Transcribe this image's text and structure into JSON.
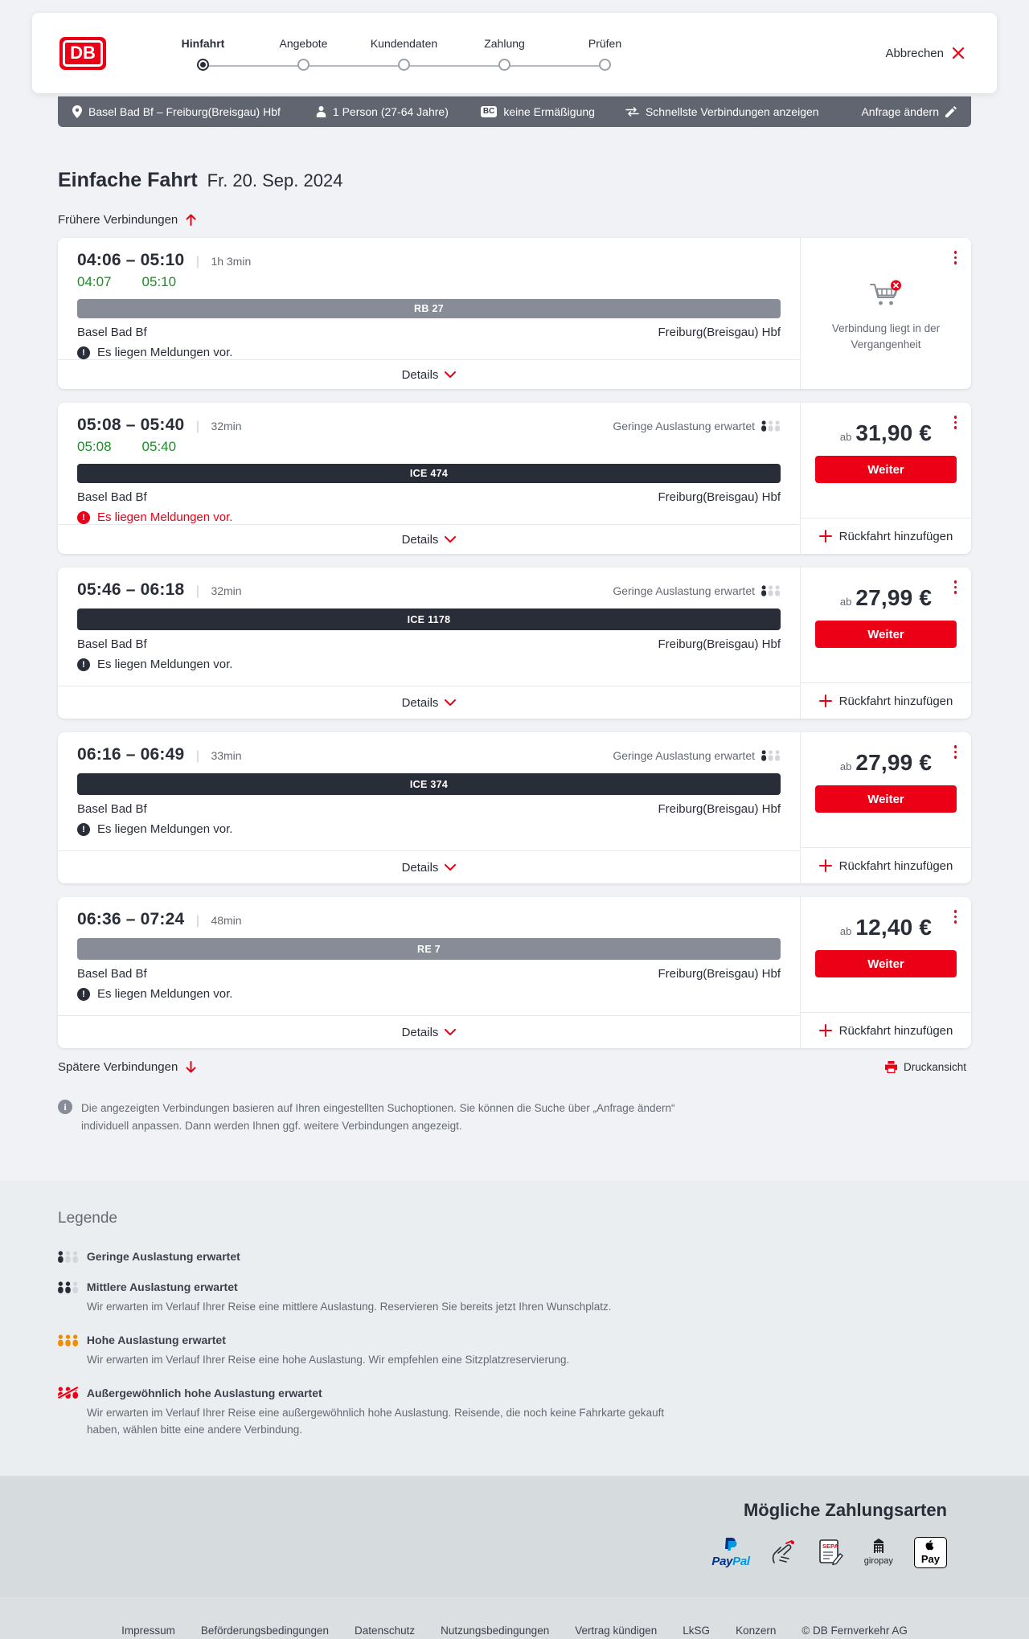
{
  "header": {
    "logo": "DB",
    "steps": [
      {
        "label": "Hinfahrt",
        "active": true
      },
      {
        "label": "Angebote",
        "active": false
      },
      {
        "label": "Kundendaten",
        "active": false
      },
      {
        "label": "Zahlung",
        "active": false
      },
      {
        "label": "Prüfen",
        "active": false
      }
    ],
    "cancel_label": "Abbrechen"
  },
  "tripbar": {
    "route": "Basel Bad Bf – Freiburg(Breisgau) Hbf",
    "passengers": "1 Person (27-64 Jahre)",
    "bahncard_badge": "BC",
    "discount": "keine Ermäßigung",
    "fastest_label": "Schnellste Verbindungen anzeigen",
    "change_label": "Anfrage ändern"
  },
  "page": {
    "title": "Einfache Fahrt",
    "date": "Fr. 20. Sep. 2024",
    "earlier_label": "Frühere Verbindungen",
    "later_label": "Spätere Verbindungen",
    "print_label": "Druckansicht",
    "info_text": "Die angezeigten Verbindungen basieren auf Ihren eingestellten Suchoptionen. Sie können die Suche über „Anfrage ändern“ individuell anpassen. Dann werden Ihnen ggf. weitere Verbindungen angezeigt."
  },
  "actions": {
    "price_prefix": "ab",
    "continue_label": "Weiter",
    "add_return_label": "Rückfahrt hinzufügen",
    "details_label": "Details"
  },
  "connections": [
    {
      "time_range": "04:06 – 05:10",
      "duration": "1h 3min",
      "rt_dep": "04:07",
      "rt_arr": "05:10",
      "train": "RB 27",
      "train_type": "regional",
      "from": "Basel Bad Bf",
      "to": "Freiburg(Breisgau) Hbf",
      "message": "Es liegen Meldungen vor.",
      "message_severity": "info",
      "occupancy": "",
      "side": {
        "type": "past",
        "note": "Verbindung liegt in der Vergangenheit"
      }
    },
    {
      "time_range": "05:08 – 05:40",
      "duration": "32min",
      "rt_dep": "05:08",
      "rt_arr": "05:40",
      "train": "ICE 474",
      "train_type": "ice",
      "from": "Basel Bad Bf",
      "to": "Freiburg(Breisgau) Hbf",
      "message": "Es liegen Meldungen vor.",
      "message_severity": "alert",
      "occupancy": "Geringe Auslastung erwartet",
      "side": {
        "type": "price",
        "price": "31,90 €"
      }
    },
    {
      "time_range": "05:46 – 06:18",
      "duration": "32min",
      "rt_dep": "",
      "rt_arr": "",
      "train": "ICE 1178",
      "train_type": "ice",
      "from": "Basel Bad Bf",
      "to": "Freiburg(Breisgau) Hbf",
      "message": "Es liegen Meldungen vor.",
      "message_severity": "info",
      "occupancy": "Geringe Auslastung erwartet",
      "side": {
        "type": "price",
        "price": "27,99 €"
      }
    },
    {
      "time_range": "06:16 – 06:49",
      "duration": "33min",
      "rt_dep": "",
      "rt_arr": "",
      "train": "ICE 374",
      "train_type": "ice",
      "from": "Basel Bad Bf",
      "to": "Freiburg(Breisgau) Hbf",
      "message": "Es liegen Meldungen vor.",
      "message_severity": "info",
      "occupancy": "Geringe Auslastung erwartet",
      "side": {
        "type": "price",
        "price": "27,99 €"
      }
    },
    {
      "time_range": "06:36 – 07:24",
      "duration": "48min",
      "rt_dep": "",
      "rt_arr": "",
      "train": "RE 7",
      "train_type": "regional",
      "from": "Basel Bad Bf",
      "to": "Freiburg(Breisgau) Hbf",
      "message": "Es liegen Meldungen vor.",
      "message_severity": "info",
      "occupancy": "",
      "side": {
        "type": "price",
        "price": "12,40 €"
      }
    }
  ],
  "legend": {
    "title": "Legende",
    "items": [
      {
        "level": "low",
        "label": "Geringe Auslastung erwartet",
        "desc": ""
      },
      {
        "level": "mid",
        "label": "Mittlere Auslastung erwartet",
        "desc": "Wir erwarten im Verlauf Ihrer Reise eine mittlere Auslastung. Reservieren Sie bereits jetzt Ihren Wunschplatz."
      },
      {
        "level": "high",
        "label": "Hohe Auslastung erwartet",
        "desc": "Wir erwarten im Verlauf Ihrer Reise eine hohe Auslastung. Wir empfehlen eine Sitzplatzreservierung."
      },
      {
        "level": "extreme",
        "label": "Außergewöhnlich hohe Auslastung erwartet",
        "desc": "Wir erwarten im Verlauf Ihrer Reise eine außergewöhnlich hohe Auslastung. Reisende, die noch keine Fahrkarte gekauft haben, wählen bitte eine andere Verbindung."
      }
    ]
  },
  "payments": {
    "title": "Mögliche Zahlungsarten",
    "methods": [
      "PayPal",
      "Kreditkarte",
      "SEPA-Lastschrift",
      "giropay",
      "Apple Pay"
    ]
  },
  "footer": {
    "links": [
      "Impressum",
      "Beförderungsbedingungen",
      "Datenschutz",
      "Nutzungsbedingungen",
      "Vertrag kündigen",
      "LkSG",
      "Konzern"
    ],
    "copyright": "© DB Fernverkehr AG"
  },
  "colors": {
    "brand_red": "#ec0016",
    "dark": "#282d37",
    "green": "#188e24",
    "occupancy_high": "#f28c00"
  }
}
